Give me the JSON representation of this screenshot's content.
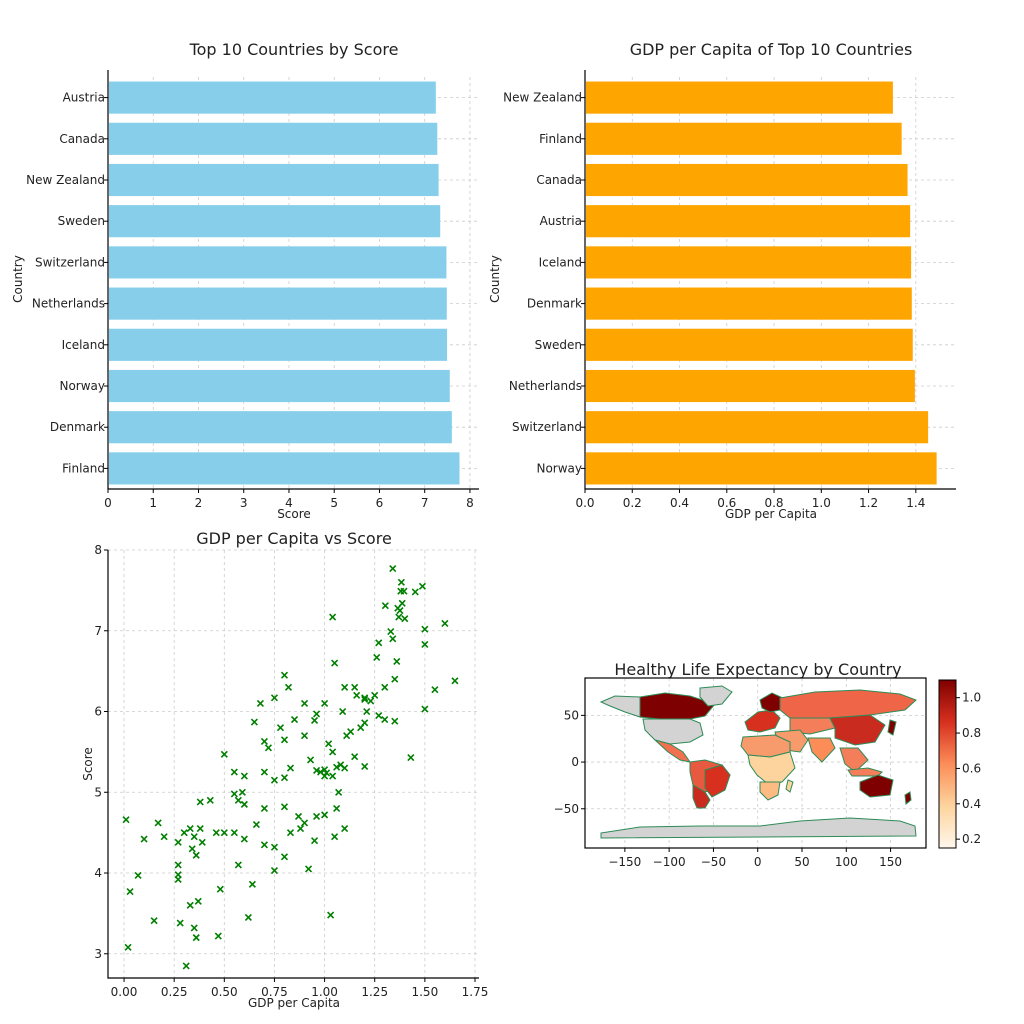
{
  "chart_data": [
    {
      "type": "bar",
      "orientation": "horizontal",
      "title": "Top 10 Countries by Score",
      "xlabel": "Score",
      "ylabel": "Country",
      "categories": [
        "Austria",
        "Canada",
        "New Zealand",
        "Sweden",
        "Switzerland",
        "Netherlands",
        "Iceland",
        "Norway",
        "Denmark",
        "Finland"
      ],
      "values": [
        7.246,
        7.278,
        7.307,
        7.343,
        7.48,
        7.488,
        7.494,
        7.554,
        7.6,
        7.769
      ],
      "xlim": [
        0,
        8.2
      ],
      "xticks": [
        "0",
        "1",
        "2",
        "3",
        "4",
        "5",
        "6",
        "7",
        "8"
      ],
      "grid": true,
      "color": "#87ceeb"
    },
    {
      "type": "bar",
      "orientation": "horizontal",
      "title": "GDP per Capita of Top 10 Countries",
      "xlabel": "GDP per Capita",
      "ylabel": "Country",
      "categories": [
        "New Zealand",
        "Finland",
        "Canada",
        "Austria",
        "Iceland",
        "Denmark",
        "Sweden",
        "Netherlands",
        "Switzerland",
        "Norway"
      ],
      "values": [
        1.303,
        1.34,
        1.365,
        1.376,
        1.38,
        1.383,
        1.387,
        1.396,
        1.452,
        1.488
      ],
      "xlim": [
        0,
        1.57
      ],
      "xticks": [
        "0.0",
        "0.2",
        "0.4",
        "0.6",
        "0.8",
        "1.0",
        "1.2",
        "1.4"
      ],
      "grid": true,
      "color": "#ffa500"
    },
    {
      "type": "scatter",
      "title": "GDP per Capita vs Score",
      "xlabel": "GDP per Capita",
      "ylabel": "Score",
      "xlim": [
        -0.08,
        1.77
      ],
      "ylim": [
        2.7,
        8.0
      ],
      "xticks": [
        "0.00",
        "0.25",
        "0.50",
        "0.75",
        "1.00",
        "1.25",
        "1.50",
        "1.75"
      ],
      "yticks": [
        "3",
        "4",
        "5",
        "6",
        "7",
        "8"
      ],
      "grid": true,
      "marker": "x",
      "color": "#007f00",
      "points": [
        [
          1.34,
          7.77
        ],
        [
          1.383,
          7.6
        ],
        [
          1.488,
          7.55
        ],
        [
          1.38,
          7.49
        ],
        [
          1.396,
          7.49
        ],
        [
          1.452,
          7.48
        ],
        [
          1.387,
          7.34
        ],
        [
          1.303,
          7.31
        ],
        [
          1.365,
          7.28
        ],
        [
          1.376,
          7.25
        ],
        [
          1.37,
          7.17
        ],
        [
          1.4,
          7.15
        ],
        [
          1.6,
          7.09
        ],
        [
          1.5,
          7.02
        ],
        [
          1.33,
          6.99
        ],
        [
          1.34,
          6.9
        ],
        [
          1.5,
          6.83
        ],
        [
          1.27,
          6.85
        ],
        [
          1.26,
          6.67
        ],
        [
          1.36,
          6.62
        ],
        [
          1.04,
          7.17
        ],
        [
          1.05,
          6.6
        ],
        [
          1.65,
          6.38
        ],
        [
          1.55,
          6.27
        ],
        [
          1.5,
          6.03
        ],
        [
          1.35,
          6.4
        ],
        [
          1.3,
          6.3
        ],
        [
          1.25,
          6.2
        ],
        [
          1.2,
          6.15
        ],
        [
          1.23,
          6.13
        ],
        [
          1.27,
          5.95
        ],
        [
          1.21,
          6.0
        ],
        [
          1.2,
          6.17
        ],
        [
          1.15,
          6.3
        ],
        [
          1.1,
          6.3
        ],
        [
          1.09,
          6.0
        ],
        [
          1.16,
          6.2
        ],
        [
          1.18,
          5.8
        ],
        [
          1.11,
          5.7
        ],
        [
          1.13,
          5.75
        ],
        [
          1.2,
          5.86
        ],
        [
          1.3,
          5.9
        ],
        [
          1.35,
          5.88
        ],
        [
          1.43,
          5.43
        ],
        [
          0.8,
          6.45
        ],
        [
          0.82,
          6.3
        ],
        [
          0.75,
          6.17
        ],
        [
          0.68,
          6.1
        ],
        [
          0.9,
          6.1
        ],
        [
          1.0,
          6.1
        ],
        [
          0.96,
          5.97
        ],
        [
          0.95,
          5.89
        ],
        [
          0.85,
          5.9
        ],
        [
          0.78,
          5.8
        ],
        [
          0.65,
          5.87
        ],
        [
          0.7,
          5.63
        ],
        [
          0.72,
          5.55
        ],
        [
          0.8,
          5.65
        ],
        [
          0.9,
          5.7
        ],
        [
          1.02,
          5.6
        ],
        [
          1.04,
          5.5
        ],
        [
          1.08,
          5.34
        ],
        [
          1.0,
          5.28
        ],
        [
          0.98,
          5.25
        ],
        [
          1.0,
          5.2
        ],
        [
          1.04,
          5.2
        ],
        [
          1.1,
          5.3
        ],
        [
          1.2,
          5.32
        ],
        [
          1.15,
          5.44
        ],
        [
          1.06,
          5.31
        ],
        [
          1.01,
          5.24
        ],
        [
          0.96,
          5.27
        ],
        [
          0.93,
          5.4
        ],
        [
          0.83,
          5.3
        ],
        [
          0.8,
          5.18
        ],
        [
          0.75,
          5.15
        ],
        [
          0.7,
          5.25
        ],
        [
          0.6,
          5.2
        ],
        [
          0.55,
          5.25
        ],
        [
          0.5,
          5.47
        ],
        [
          0.59,
          5.0
        ],
        [
          0.55,
          4.98
        ],
        [
          0.6,
          4.85
        ],
        [
          0.7,
          4.8
        ],
        [
          0.8,
          4.82
        ],
        [
          0.87,
          4.7
        ],
        [
          0.9,
          4.62
        ],
        [
          0.96,
          4.7
        ],
        [
          1.0,
          4.72
        ],
        [
          1.07,
          5.0
        ],
        [
          1.06,
          4.8
        ],
        [
          1.1,
          4.55
        ],
        [
          1.05,
          4.45
        ],
        [
          0.95,
          4.4
        ],
        [
          0.88,
          4.55
        ],
        [
          0.83,
          4.5
        ],
        [
          0.8,
          4.2
        ],
        [
          0.75,
          4.32
        ],
        [
          0.7,
          4.35
        ],
        [
          0.66,
          4.6
        ],
        [
          0.57,
          4.9
        ],
        [
          0.55,
          4.5
        ],
        [
          0.5,
          4.5
        ],
        [
          0.46,
          4.5
        ],
        [
          0.43,
          4.9
        ],
        [
          0.38,
          4.88
        ],
        [
          0.38,
          4.55
        ],
        [
          0.35,
          4.45
        ],
        [
          0.33,
          4.55
        ],
        [
          0.3,
          4.5
        ],
        [
          0.27,
          4.38
        ],
        [
          0.34,
          4.3
        ],
        [
          0.36,
          4.22
        ],
        [
          0.39,
          4.38
        ],
        [
          0.2,
          4.45
        ],
        [
          0.17,
          4.62
        ],
        [
          0.1,
          4.42
        ],
        [
          0.01,
          4.66
        ],
        [
          0.27,
          4.1
        ],
        [
          0.27,
          3.98
        ],
        [
          0.27,
          3.92
        ],
        [
          0.37,
          3.65
        ],
        [
          0.33,
          3.6
        ],
        [
          0.48,
          3.8
        ],
        [
          0.57,
          4.1
        ],
        [
          0.6,
          4.42
        ],
        [
          0.75,
          4.03
        ],
        [
          0.62,
          3.45
        ],
        [
          1.03,
          3.48
        ],
        [
          0.07,
          3.97
        ],
        [
          0.03,
          3.77
        ],
        [
          0.15,
          3.41
        ],
        [
          0.28,
          3.38
        ],
        [
          0.35,
          3.32
        ],
        [
          0.36,
          3.2
        ],
        [
          0.47,
          3.22
        ],
        [
          0.02,
          3.08
        ],
        [
          0.31,
          2.85
        ],
        [
          0.64,
          3.86
        ],
        [
          0.92,
          4.05
        ]
      ]
    },
    {
      "type": "choropleth",
      "title": "Healthy Life Expectancy by Country",
      "xlim": [
        -195,
        190
      ],
      "ylim": [
        -92,
        90
      ],
      "xticks": [
        "−150",
        "−100",
        "−50",
        "0",
        "50",
        "100",
        "150"
      ],
      "yticks": [
        "50",
        "0",
        "−50"
      ],
      "colorbar": {
        "min": 0.15,
        "max": 1.1,
        "ticks": [
          "0.2",
          "0.4",
          "0.6",
          "0.8",
          "1.0"
        ],
        "colors": [
          "#fff7ec",
          "#fdd49e",
          "#fc8d59",
          "#d7301f",
          "#7f0000"
        ]
      },
      "border_color": "#2e8b57",
      "missing_color": "#d3d3d3"
    }
  ]
}
